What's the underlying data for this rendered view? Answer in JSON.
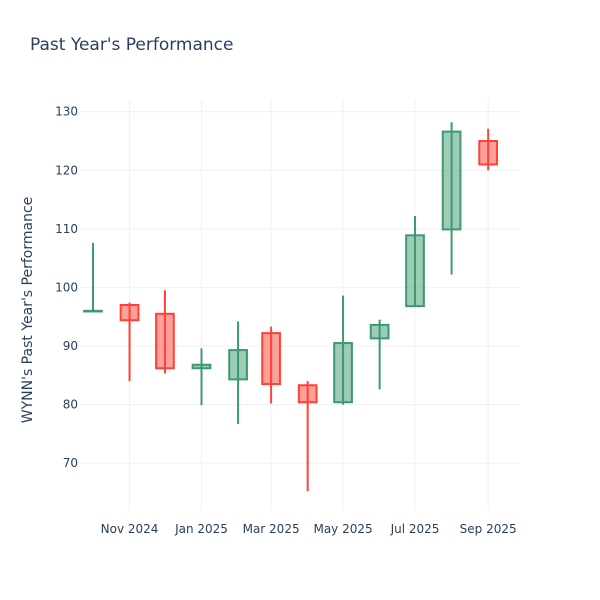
{
  "chart_data": {
    "type": "candlestick",
    "title": "Past Year's Performance",
    "xlabel": "",
    "ylabel": "WYNN's Past Year's Performance",
    "ylim": [
      62,
      132
    ],
    "yticks": [
      70,
      80,
      90,
      100,
      110,
      120,
      130
    ],
    "xlim": [
      "2024-09-20",
      "2025-09-28"
    ],
    "xticks": [
      {
        "date": "2024-11-01",
        "label": "Nov 2024"
      },
      {
        "date": "2025-01-01",
        "label": "Jan 2025"
      },
      {
        "date": "2025-03-01",
        "label": "Mar 2025"
      },
      {
        "date": "2025-05-01",
        "label": "May 2025"
      },
      {
        "date": "2025-07-01",
        "label": "Jul 2025"
      },
      {
        "date": "2025-09-01",
        "label": "Sep 2025"
      }
    ],
    "grid": true,
    "colors": {
      "increasing_line": "#3d9970",
      "increasing_fill": "rgba(61,153,112,0.5)",
      "decreasing_line": "#ff4136",
      "decreasing_fill": "rgba(255,65,54,0.5)"
    },
    "candles": [
      {
        "date": "2024-10-01",
        "open": 96.0,
        "high": 107.6,
        "low": 96.0,
        "close": 96.0
      },
      {
        "date": "2024-11-01",
        "open": 97.0,
        "high": 97.4,
        "low": 84.0,
        "close": 94.4
      },
      {
        "date": "2024-12-01",
        "open": 95.5,
        "high": 99.5,
        "low": 85.3,
        "close": 86.2
      },
      {
        "date": "2025-01-01",
        "open": 86.2,
        "high": 89.6,
        "low": 79.9,
        "close": 86.8
      },
      {
        "date": "2025-02-01",
        "open": 84.3,
        "high": 94.2,
        "low": 76.7,
        "close": 89.3
      },
      {
        "date": "2025-03-01",
        "open": 92.2,
        "high": 93.3,
        "low": 80.2,
        "close": 83.5
      },
      {
        "date": "2025-04-01",
        "open": 83.3,
        "high": 84.0,
        "low": 65.2,
        "close": 80.4
      },
      {
        "date": "2025-05-01",
        "open": 80.4,
        "high": 98.6,
        "low": 80.0,
        "close": 90.5
      },
      {
        "date": "2025-06-01",
        "open": 91.3,
        "high": 94.5,
        "low": 82.6,
        "close": 93.6
      },
      {
        "date": "2025-07-01",
        "open": 96.8,
        "high": 112.2,
        "low": 96.8,
        "close": 108.9
      },
      {
        "date": "2025-08-01",
        "open": 109.9,
        "high": 128.2,
        "low": 102.2,
        "close": 126.6
      },
      {
        "date": "2025-09-01",
        "open": 125.0,
        "high": 127.1,
        "low": 120.0,
        "close": 121.0
      }
    ]
  }
}
